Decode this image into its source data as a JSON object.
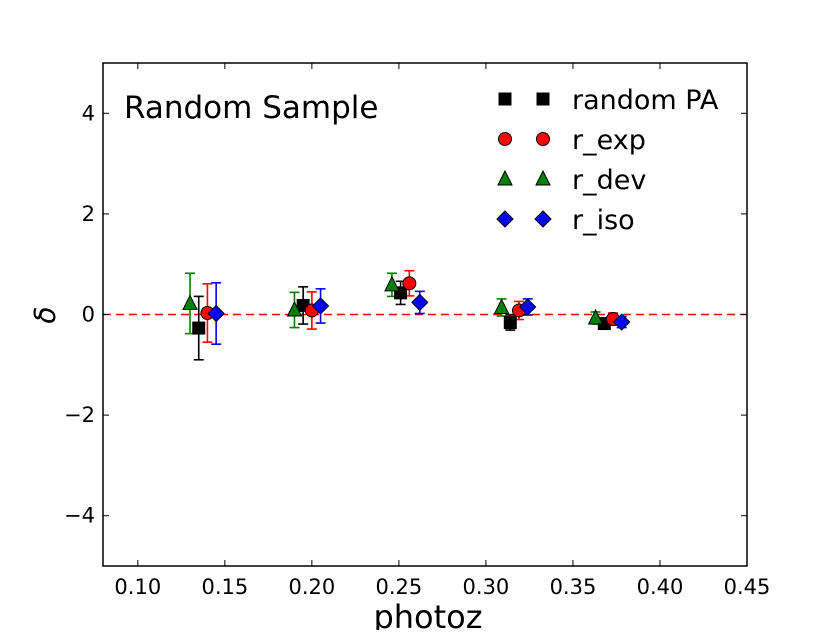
{
  "chart_data": {
    "type": "scatter",
    "title": "",
    "annotation": "Random Sample",
    "xlabel": "photoz",
    "ylabel": "δ",
    "xlim": [
      0.08,
      0.45
    ],
    "ylim": [
      -5,
      5
    ],
    "xticks": [
      "0.10",
      "0.15",
      "0.20",
      "0.25",
      "0.30",
      "0.35",
      "0.40",
      "0.45"
    ],
    "xtick_values": [
      0.1,
      0.15,
      0.2,
      0.25,
      0.3,
      0.35,
      0.4,
      0.45
    ],
    "yticks": [
      "−4",
      "−2",
      "0",
      "2",
      "4"
    ],
    "ytick_values": [
      -4,
      -2,
      0,
      2,
      4
    ],
    "grid": false,
    "legend_position": "top-right",
    "reference_line": {
      "y": 0,
      "style": "dashed",
      "color": "#ff0000"
    },
    "series": [
      {
        "name": "random PA",
        "marker": "square",
        "color": "#000000",
        "points": [
          {
            "x": 0.135,
            "y": -0.27,
            "err": 0.63
          },
          {
            "x": 0.195,
            "y": 0.18,
            "err": 0.37
          },
          {
            "x": 0.251,
            "y": 0.43,
            "err": 0.23
          },
          {
            "x": 0.314,
            "y": -0.16,
            "err": 0.15
          },
          {
            "x": 0.368,
            "y": -0.18,
            "err": 0.1
          }
        ]
      },
      {
        "name": "r_exp",
        "marker": "circle",
        "color": "#ff0000",
        "points": [
          {
            "x": 0.14,
            "y": 0.03,
            "err": 0.58
          },
          {
            "x": 0.2,
            "y": 0.08,
            "err": 0.37
          },
          {
            "x": 0.256,
            "y": 0.62,
            "err": 0.25
          },
          {
            "x": 0.319,
            "y": 0.08,
            "err": 0.18
          },
          {
            "x": 0.373,
            "y": -0.09,
            "err": 0.12
          }
        ]
      },
      {
        "name": "r_dev",
        "marker": "triangle",
        "color": "#008000",
        "points": [
          {
            "x": 0.13,
            "y": 0.22,
            "err": 0.6
          },
          {
            "x": 0.19,
            "y": 0.09,
            "err": 0.35
          },
          {
            "x": 0.246,
            "y": 0.59,
            "err": 0.23
          },
          {
            "x": 0.309,
            "y": 0.14,
            "err": 0.17
          },
          {
            "x": 0.363,
            "y": -0.07,
            "err": 0.12
          }
        ]
      },
      {
        "name": "r_iso",
        "marker": "diamond",
        "color": "#0000ff",
        "points": [
          {
            "x": 0.145,
            "y": 0.02,
            "err": 0.61
          },
          {
            "x": 0.205,
            "y": 0.17,
            "err": 0.34
          },
          {
            "x": 0.262,
            "y": 0.24,
            "err": 0.22
          },
          {
            "x": 0.324,
            "y": 0.15,
            "err": 0.16
          },
          {
            "x": 0.378,
            "y": -0.15,
            "err": 0.11
          }
        ]
      }
    ]
  }
}
